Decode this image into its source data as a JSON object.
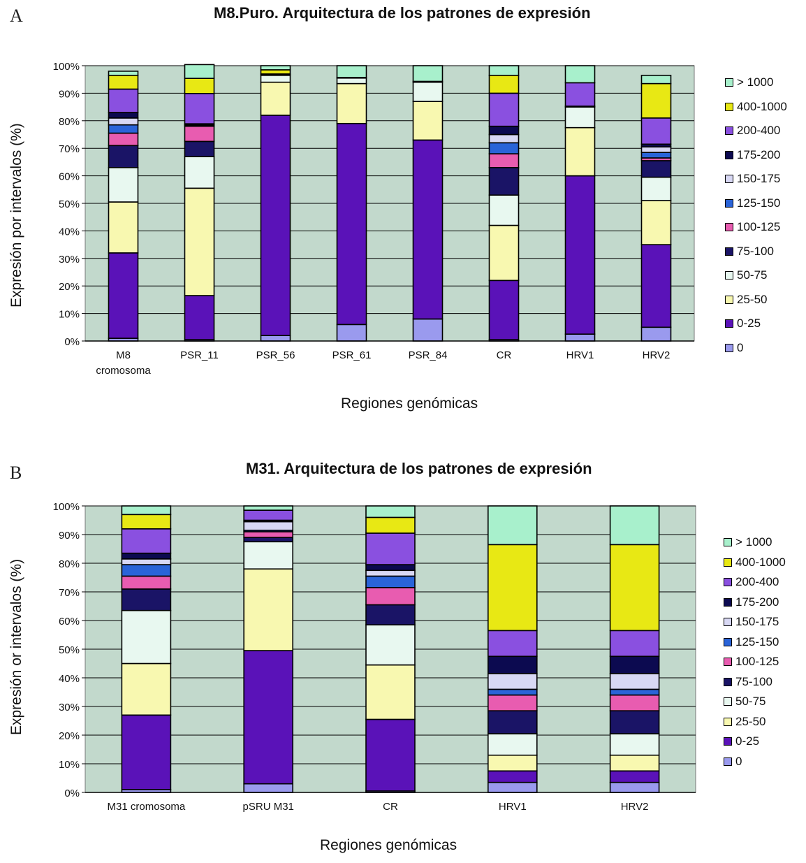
{
  "chart_data": [
    {
      "type": "bar",
      "stacked": true,
      "panel_label": "A",
      "title": "M8.Puro. Arquitectura de los patrones de expresión",
      "xlabel": "Regiones genómicas",
      "ylabel": "Expresión por intervalos (%)",
      "ylim": [
        0,
        100
      ],
      "yticks": [
        "0%",
        "10%",
        "20%",
        "30%",
        "40%",
        "50%",
        "60%",
        "70%",
        "80%",
        "90%",
        "100%"
      ],
      "grid": true,
      "legend_position": "right",
      "categories": [
        "M8 cromosoma",
        "PSR_11",
        "PSR_56",
        "PSR_61",
        "PSR_84",
        "CR",
        "HRV1",
        "HRV2"
      ],
      "series": [
        {
          "name": "0",
          "values": [
            1,
            0.5,
            2,
            6,
            8,
            0.5,
            2.5,
            5
          ]
        },
        {
          "name": "0-25",
          "values": [
            31,
            16,
            80,
            73,
            65,
            21.5,
            57.5,
            30
          ]
        },
        {
          "name": "25-50",
          "values": [
            18.5,
            39,
            12,
            14.5,
            14,
            20,
            17.5,
            16
          ]
        },
        {
          "name": "50-75",
          "values": [
            12.5,
            11.5,
            2.5,
            2,
            7,
            11,
            7.5,
            8.5
          ]
        },
        {
          "name": "75-100",
          "values": [
            8,
            5.5,
            0.3,
            0.2,
            0.3,
            10,
            0.3,
            6
          ]
        },
        {
          "name": "100-125",
          "values": [
            4.5,
            5.5,
            0.2,
            0,
            0,
            5,
            0,
            1
          ]
        },
        {
          "name": "125-150",
          "values": [
            3,
            0.3,
            0,
            0,
            0,
            4,
            0,
            2
          ]
        },
        {
          "name": "150-175",
          "values": [
            2.5,
            0.3,
            0,
            0,
            0,
            3,
            0,
            2
          ]
        },
        {
          "name": "175-200",
          "values": [
            2,
            0.3,
            0,
            0,
            0,
            3,
            0,
            1
          ]
        },
        {
          "name": "200-400",
          "values": [
            8.5,
            11,
            0,
            0,
            0,
            12,
            8.5,
            9.5
          ]
        },
        {
          "name": "400-1000",
          "values": [
            5,
            5.5,
            1.5,
            0,
            0,
            6.5,
            0,
            12.5
          ]
        },
        {
          "name": "> 1000",
          "values": [
            1.5,
            5,
            1.5,
            4.3,
            5.7,
            3.5,
            6.2,
            3
          ]
        }
      ]
    },
    {
      "type": "bar",
      "stacked": true,
      "panel_label": "B",
      "title": "M31. Arquitectura de los patrones de expresión",
      "xlabel": "Regiones genómicas",
      "ylabel": "Expresión or intervalos (%)",
      "ylim": [
        0,
        100
      ],
      "yticks": [
        "0%",
        "10%",
        "20%",
        "30%",
        "40%",
        "50%",
        "60%",
        "70%",
        "80%",
        "90%",
        "100%"
      ],
      "grid": true,
      "legend_position": "right",
      "categories": [
        "M31 cromosoma",
        "pSRU M31",
        "CR",
        "HRV1",
        "HRV2"
      ],
      "series": [
        {
          "name": "0",
          "values": [
            1,
            3,
            0.5,
            3.5,
            3.5
          ]
        },
        {
          "name": "0-25",
          "values": [
            26,
            46.5,
            25,
            4,
            4
          ]
        },
        {
          "name": "25-50",
          "values": [
            18,
            28.5,
            19,
            5.5,
            5.5
          ]
        },
        {
          "name": "50-75",
          "values": [
            18.5,
            9.5,
            14,
            7.5,
            7.5
          ]
        },
        {
          "name": "75-100",
          "values": [
            7.5,
            1.5,
            7,
            8,
            8
          ]
        },
        {
          "name": "100-125",
          "values": [
            4.5,
            2,
            6,
            5.5,
            5.5
          ]
        },
        {
          "name": "125-150",
          "values": [
            4,
            0.5,
            4,
            2,
            2
          ]
        },
        {
          "name": "150-175",
          "values": [
            2,
            3,
            2,
            5.5,
            5.5
          ]
        },
        {
          "name": "175-200",
          "values": [
            2,
            0.5,
            2,
            6,
            6
          ]
        },
        {
          "name": "200-400",
          "values": [
            8.5,
            3.5,
            11,
            9,
            9
          ]
        },
        {
          "name": "400-1000",
          "values": [
            5,
            0,
            5.5,
            30,
            30
          ]
        },
        {
          "name": "> 1000",
          "values": [
            3,
            1.5,
            4,
            13.5,
            13.5
          ]
        }
      ]
    }
  ],
  "colors": {
    "plot_bg": "#c2d9cc",
    "series": [
      "#9a9aee",
      "#5a12b8",
      "#f8f8b0",
      "#e8f8f0",
      "#1a1466",
      "#e85cb0",
      "#2a64d8",
      "#d8d8f4",
      "#0c0a50",
      "#8a50e0",
      "#e8e814",
      "#a8f0cc"
    ]
  }
}
